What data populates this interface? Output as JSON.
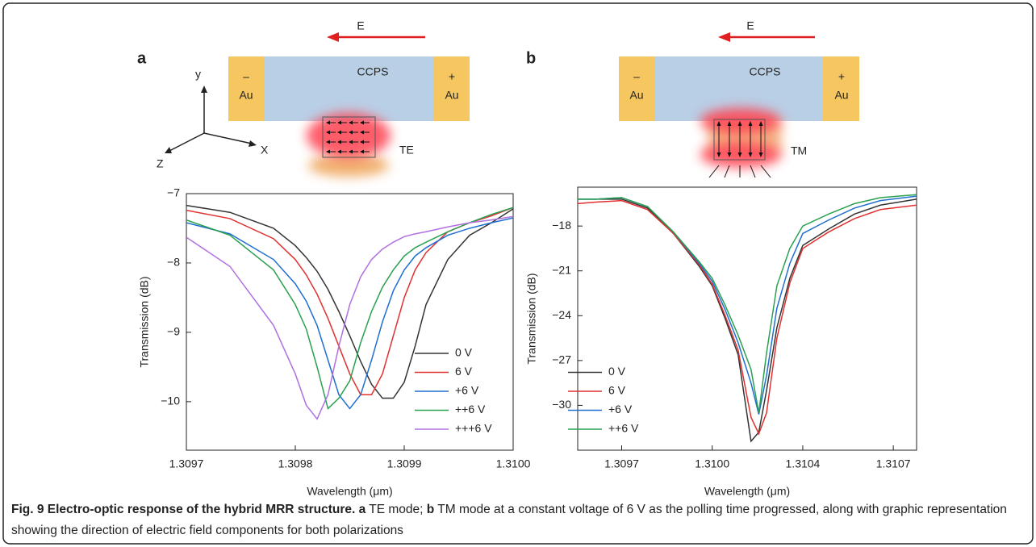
{
  "chart_data": [
    {
      "type": "line",
      "xlabel": "Wavelength (μm)",
      "ylabel": "Transmission (dB)",
      "x": [
        1.3097,
        1.30974,
        1.30978,
        1.3098,
        1.30981,
        1.30982,
        1.30983,
        1.30984,
        1.30985,
        1.30986,
        1.30987,
        1.30988,
        1.30989,
        1.3099,
        1.30991,
        1.30992,
        1.30994,
        1.30996,
        1.30998,
        1.31
      ],
      "series": [
        {
          "name": "0 V",
          "color": "#333333",
          "values": [
            -7.17,
            -7.27,
            -7.5,
            -7.75,
            -7.92,
            -8.12,
            -8.38,
            -8.7,
            -9.05,
            -9.42,
            -9.75,
            -9.95,
            -9.95,
            -9.72,
            -9.2,
            -8.6,
            -7.95,
            -7.6,
            -7.42,
            -7.22
          ]
        },
        {
          "name": "6 V",
          "color": "#e03030",
          "values": [
            -7.24,
            -7.36,
            -7.65,
            -7.95,
            -8.17,
            -8.45,
            -8.8,
            -9.2,
            -9.6,
            -9.9,
            -9.9,
            -9.6,
            -9.05,
            -8.5,
            -8.1,
            -7.85,
            -7.55,
            -7.42,
            -7.32,
            -7.2
          ]
        },
        {
          "name": "+6 V",
          "color": "#1f6fd0",
          "values": [
            -7.42,
            -7.58,
            -7.95,
            -8.3,
            -8.55,
            -8.9,
            -9.4,
            -9.9,
            -10.1,
            -9.9,
            -9.4,
            -8.85,
            -8.4,
            -8.1,
            -7.9,
            -7.78,
            -7.6,
            -7.5,
            -7.42,
            -7.35
          ]
        },
        {
          "name": "++6 V",
          "color": "#2aa050",
          "values": [
            -7.38,
            -7.6,
            -8.1,
            -8.6,
            -8.95,
            -9.5,
            -10.1,
            -9.95,
            -9.7,
            -9.15,
            -8.7,
            -8.35,
            -8.1,
            -7.9,
            -7.78,
            -7.7,
            -7.55,
            -7.42,
            -7.3,
            -7.2
          ]
        },
        {
          "name": "+++6 V",
          "color": "#b070e0",
          "values": [
            -7.63,
            -8.05,
            -8.9,
            -9.6,
            -10.05,
            -10.25,
            -9.9,
            -9.2,
            -8.6,
            -8.2,
            -7.95,
            -7.8,
            -7.7,
            -7.62,
            -7.58,
            -7.55,
            -7.48,
            -7.42,
            -7.38,
            -7.33
          ]
        }
      ],
      "xlim": [
        1.3097,
        1.31
      ],
      "xticks": [
        1.3097,
        1.3098,
        1.3099,
        {
          "value": 1.31,
          "label": "1.3100"
        }
      ],
      "ylim": [
        -10.7,
        -7
      ],
      "yticks": [
        {
          "value": -7,
          "label": "−7"
        },
        {
          "value": -8,
          "label": "−8"
        },
        {
          "value": -9,
          "label": "−9"
        },
        {
          "value": -10,
          "label": "−10"
        }
      ],
      "legend": "lower right"
    },
    {
      "type": "line",
      "xlabel": "Wavelength (μm)",
      "ylabel": "Transmission (dB)",
      "x": [
        1.30953,
        1.3096,
        1.3097,
        1.3098,
        1.3099,
        1.31,
        1.31005,
        1.3101,
        1.31015,
        1.3102,
        1.31023,
        1.31026,
        1.3103,
        1.31035,
        1.3104,
        1.3105,
        1.3106,
        1.3107,
        1.31084
      ],
      "series": [
        {
          "name": "0 V",
          "color": "#333333",
          "values": [
            -16.2,
            -16.2,
            -16.2,
            -16.8,
            -18.5,
            -20.7,
            -22.0,
            -24.2,
            -26.6,
            -32.4,
            -31.8,
            -29.0,
            -24.8,
            -21.5,
            -19.3,
            -18.2,
            -17.2,
            -16.6,
            -16.2
          ]
        },
        {
          "name": "6 V",
          "color": "#e03030",
          "values": [
            -16.5,
            -16.4,
            -16.3,
            -16.9,
            -18.5,
            -20.6,
            -21.9,
            -24.0,
            -26.3,
            -30.8,
            -31.9,
            -30.5,
            -25.5,
            -21.8,
            -19.5,
            -18.4,
            -17.5,
            -16.9,
            -16.6
          ]
        },
        {
          "name": "+6 V",
          "color": "#1f6fd0",
          "values": [
            -16.2,
            -16.2,
            -16.1,
            -16.7,
            -18.4,
            -20.5,
            -21.7,
            -23.6,
            -25.8,
            -28.5,
            -30.6,
            -28.0,
            -23.5,
            -20.5,
            -18.5,
            -17.6,
            -16.8,
            -16.3,
            -16.0
          ]
        },
        {
          "name": "++6 V",
          "color": "#2aa050",
          "values": [
            -16.2,
            -16.2,
            -16.1,
            -16.7,
            -18.4,
            -20.4,
            -21.5,
            -23.3,
            -25.3,
            -27.6,
            -30.5,
            -26.5,
            -22.0,
            -19.5,
            -18.0,
            -17.2,
            -16.5,
            -16.1,
            -15.9
          ]
        }
      ],
      "xlim": [
        1.30953,
        1.31084
      ],
      "xticks": [
        1.3097,
        {
          "value": 1.31005,
          "label": "1.3100"
        },
        {
          "value": 1.3104,
          "label": "1.3104"
        },
        {
          "value": 1.31075,
          "label": "1.3107"
        }
      ],
      "ylim": [
        -33,
        -15.4
      ],
      "yticks": [
        {
          "value": -18,
          "label": "−18"
        },
        {
          "value": -21,
          "label": "−21"
        },
        {
          "value": -24,
          "label": "−24"
        },
        {
          "value": -27,
          "label": "−27"
        },
        {
          "value": -30,
          "label": "−30"
        }
      ],
      "legend": "lower left"
    }
  ],
  "diagrams": [
    {
      "panel": "a",
      "field": "E",
      "medium": "CCPS",
      "left_sign": "–",
      "left_metal": "Au",
      "right_sign": "+",
      "right_metal": "Au",
      "axis_y": "y",
      "axis_x": "X",
      "axis_z": "Z",
      "mode": "TE"
    },
    {
      "panel": "b",
      "field": "E",
      "medium": "CCPS",
      "left_sign": "–",
      "left_metal": "Au",
      "right_sign": "+",
      "right_metal": "Au",
      "mode": "TM"
    }
  ],
  "caption": {
    "title": "Fig. 9 Electro-optic response of the hybrid MRR structure.",
    "a": "a",
    "a_text": " TE mode; ",
    "b": "b",
    "b_text": " TM mode at a constant voltage of 6 V as the polling time progressed, along with graphic representation showing the direction of electric field components for both polarizations"
  }
}
